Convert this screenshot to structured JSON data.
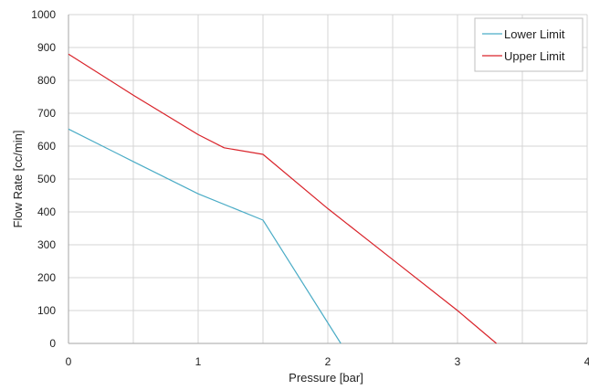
{
  "chart_data": {
    "type": "line",
    "xlabel": "Pressure [bar]",
    "ylabel": "Flow Rate [cc/min]",
    "xlim": [
      0,
      4
    ],
    "ylim": [
      0,
      1000
    ],
    "x_ticks": [
      0,
      0.5,
      1,
      1.5,
      2,
      2.5,
      3,
      3.5,
      4
    ],
    "x_tick_labels": [
      "0",
      "",
      "1",
      "",
      "2",
      "",
      "3",
      "",
      "4"
    ],
    "y_ticks": [
      0,
      100,
      200,
      300,
      400,
      500,
      600,
      700,
      800,
      900,
      1000
    ],
    "y_tick_labels": [
      "0",
      "100",
      "200",
      "300",
      "400",
      "500",
      "600",
      "700",
      "800",
      "900",
      "1000"
    ],
    "grid": true,
    "legend_position": "top-right",
    "series": [
      {
        "name": "Lower Limit",
        "color": "#4bacc6",
        "points": [
          [
            0,
            652
          ],
          [
            0.5,
            553
          ],
          [
            1,
            455
          ],
          [
            1.5,
            375
          ],
          [
            2.1,
            0
          ]
        ]
      },
      {
        "name": "Upper Limit",
        "color": "#d9232a",
        "points": [
          [
            0,
            880
          ],
          [
            0.5,
            755
          ],
          [
            1,
            635
          ],
          [
            1.2,
            595
          ],
          [
            1.5,
            575
          ],
          [
            2,
            410
          ],
          [
            2.5,
            255
          ],
          [
            3,
            100
          ],
          [
            3.3,
            0
          ]
        ]
      }
    ]
  }
}
